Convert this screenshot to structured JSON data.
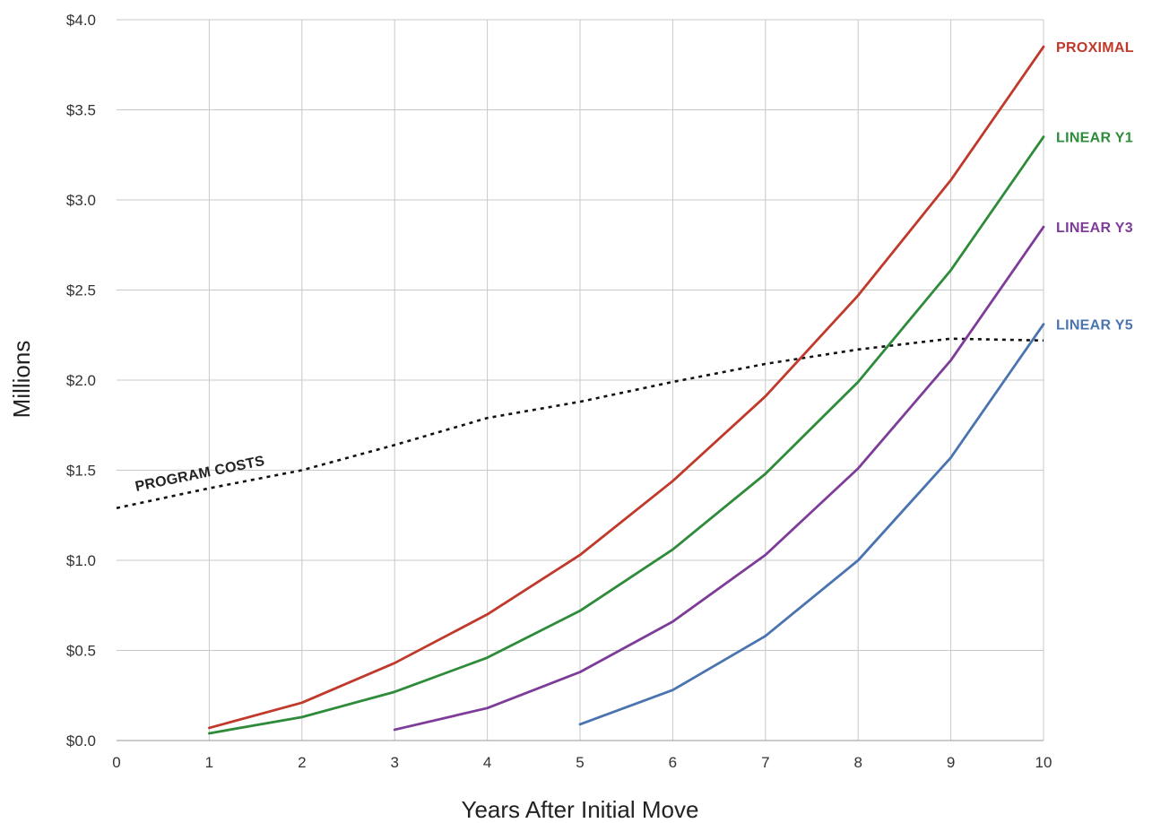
{
  "chart_data": {
    "type": "line",
    "xlabel": "Years After Initial Move",
    "ylabel": "Millions",
    "xlim": [
      0,
      10
    ],
    "ylim": [
      0,
      4.0
    ],
    "grid": true,
    "legend": "right-edge line labels",
    "x_ticks": [
      "0",
      "1",
      "2",
      "3",
      "4",
      "5",
      "6",
      "7",
      "8",
      "9",
      "10"
    ],
    "y_ticks": [
      "$0.0",
      "$0.5",
      "$1.0",
      "$1.5",
      "$2.0",
      "$2.5",
      "$3.0",
      "$3.5",
      "$4.0"
    ],
    "series": [
      {
        "name": "PROXIMAL",
        "color": "#c0392b",
        "points": [
          [
            1,
            0.07
          ],
          [
            2,
            0.21
          ],
          [
            3,
            0.43
          ],
          [
            4,
            0.7
          ],
          [
            5,
            1.03
          ],
          [
            6,
            1.44
          ],
          [
            7,
            1.91
          ],
          [
            8,
            2.47
          ],
          [
            9,
            3.11
          ],
          [
            10,
            3.85
          ]
        ]
      },
      {
        "name": "LINEAR Y1",
        "color": "#2e8b3a",
        "points": [
          [
            1,
            0.04
          ],
          [
            2,
            0.13
          ],
          [
            3,
            0.27
          ],
          [
            4,
            0.46
          ],
          [
            5,
            0.72
          ],
          [
            6,
            1.06
          ],
          [
            7,
            1.48
          ],
          [
            8,
            1.99
          ],
          [
            9,
            2.61
          ],
          [
            10,
            3.35
          ]
        ]
      },
      {
        "name": "LINEAR Y3",
        "color": "#7d3c98",
        "points": [
          [
            3,
            0.06
          ],
          [
            4,
            0.18
          ],
          [
            5,
            0.38
          ],
          [
            6,
            0.66
          ],
          [
            7,
            1.03
          ],
          [
            8,
            1.51
          ],
          [
            9,
            2.11
          ],
          [
            10,
            2.85
          ]
        ]
      },
      {
        "name": "LINEAR Y5",
        "color": "#4a74b0",
        "points": [
          [
            5,
            0.09
          ],
          [
            6,
            0.28
          ],
          [
            7,
            0.58
          ],
          [
            8,
            1.0
          ],
          [
            9,
            1.57
          ],
          [
            10,
            2.31
          ]
        ]
      }
    ],
    "reference_line": {
      "name": "PROGRAM COSTS",
      "style": "dotted",
      "color": "#111111",
      "points": [
        [
          0,
          1.29
        ],
        [
          1,
          1.4
        ],
        [
          2,
          1.5
        ],
        [
          3,
          1.64
        ],
        [
          4,
          1.79
        ],
        [
          5,
          1.88
        ],
        [
          6,
          1.99
        ],
        [
          7,
          2.09
        ],
        [
          8,
          2.17
        ],
        [
          9,
          2.23
        ],
        [
          10,
          2.22
        ]
      ]
    }
  }
}
